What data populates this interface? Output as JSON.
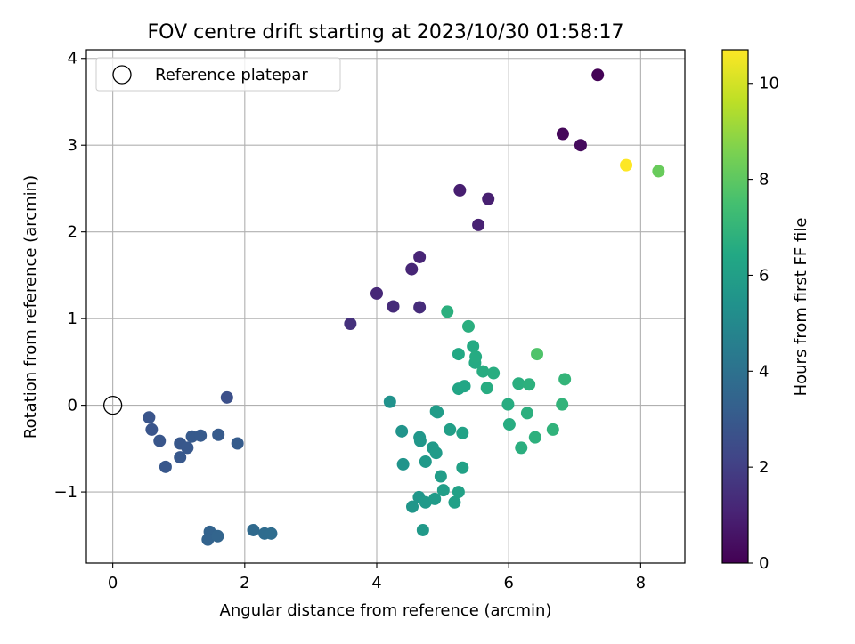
{
  "chart_data": {
    "type": "scatter",
    "title": "FOV centre drift starting at 2023/10/30 01:58:17",
    "xlabel": "Angular distance from reference (arcmin)",
    "ylabel": "Rotation from reference (arcmin)",
    "xlim": [
      -0.4,
      8.67
    ],
    "ylim": [
      -1.82,
      4.1
    ],
    "xticks": [
      {
        "value": 0,
        "label": "0"
      },
      {
        "value": 2,
        "label": "2"
      },
      {
        "value": 4,
        "label": "4"
      },
      {
        "value": 6,
        "label": "6"
      },
      {
        "value": 8,
        "label": "8"
      }
    ],
    "yticks": [
      {
        "value": -1,
        "label": "−1"
      },
      {
        "value": 0,
        "label": "0"
      },
      {
        "value": 1,
        "label": "1"
      },
      {
        "value": 2,
        "label": "2"
      },
      {
        "value": 3,
        "label": "3"
      },
      {
        "value": 4,
        "label": "4"
      }
    ],
    "grid": true,
    "legend": {
      "placement": "upper-left",
      "entries": [
        "Reference platepar"
      ]
    },
    "reference_point": {
      "x": 0,
      "y": 0,
      "label": "Reference platepar"
    },
    "colorbar": {
      "label": "Hours from first FF file",
      "colormap": "viridis",
      "range": [
        0,
        10.7
      ],
      "ticks": [
        {
          "value": 0,
          "label": "0"
        },
        {
          "value": 2,
          "label": "2"
        },
        {
          "value": 4,
          "label": "4"
        },
        {
          "value": 6,
          "label": "6"
        },
        {
          "value": 8,
          "label": "8"
        },
        {
          "value": 10,
          "label": "10"
        }
      ]
    },
    "points": [
      {
        "x": 7.35,
        "y": 3.81,
        "h": 0.05
      },
      {
        "x": 6.82,
        "y": 3.13,
        "h": 0.2
      },
      {
        "x": 7.09,
        "y": 3.0,
        "h": 0.3
      },
      {
        "x": 7.78,
        "y": 2.77,
        "h": 10.7
      },
      {
        "x": 8.27,
        "y": 2.7,
        "h": 8.2
      },
      {
        "x": 5.26,
        "y": 2.48,
        "h": 0.9
      },
      {
        "x": 5.69,
        "y": 2.38,
        "h": 0.95
      },
      {
        "x": 5.54,
        "y": 2.08,
        "h": 1.0
      },
      {
        "x": 4.65,
        "y": 1.71,
        "h": 1.1
      },
      {
        "x": 4.53,
        "y": 1.57,
        "h": 1.15
      },
      {
        "x": 4.0,
        "y": 1.29,
        "h": 1.2
      },
      {
        "x": 4.25,
        "y": 1.14,
        "h": 1.3
      },
      {
        "x": 4.65,
        "y": 1.13,
        "h": 1.35
      },
      {
        "x": 3.6,
        "y": 0.94,
        "h": 1.5
      },
      {
        "x": 1.73,
        "y": 0.09,
        "h": 2.6
      },
      {
        "x": 0.55,
        "y": -0.14,
        "h": 2.8
      },
      {
        "x": 0.59,
        "y": -0.28,
        "h": 2.8
      },
      {
        "x": 0.71,
        "y": -0.41,
        "h": 2.85
      },
      {
        "x": 0.8,
        "y": -0.71,
        "h": 2.9
      },
      {
        "x": 1.02,
        "y": -0.44,
        "h": 2.9
      },
      {
        "x": 1.02,
        "y": -0.6,
        "h": 2.95
      },
      {
        "x": 1.13,
        "y": -0.49,
        "h": 2.95
      },
      {
        "x": 1.2,
        "y": -0.36,
        "h": 3.0
      },
      {
        "x": 1.33,
        "y": -0.35,
        "h": 3.0
      },
      {
        "x": 1.6,
        "y": -0.34,
        "h": 3.05
      },
      {
        "x": 1.89,
        "y": -0.44,
        "h": 3.1
      },
      {
        "x": 1.47,
        "y": -1.46,
        "h": 3.4
      },
      {
        "x": 1.44,
        "y": -1.55,
        "h": 3.4
      },
      {
        "x": 1.59,
        "y": -1.51,
        "h": 3.45
      },
      {
        "x": 2.13,
        "y": -1.44,
        "h": 3.7
      },
      {
        "x": 2.3,
        "y": -1.48,
        "h": 3.75
      },
      {
        "x": 2.4,
        "y": -1.48,
        "h": 3.8
      },
      {
        "x": 4.2,
        "y": 0.04,
        "h": 5.4
      },
      {
        "x": 4.38,
        "y": -0.3,
        "h": 5.5
      },
      {
        "x": 4.4,
        "y": -0.68,
        "h": 5.5
      },
      {
        "x": 4.54,
        "y": -1.17,
        "h": 5.6
      },
      {
        "x": 4.64,
        "y": -1.06,
        "h": 5.6
      },
      {
        "x": 4.65,
        "y": -0.37,
        "h": 5.65
      },
      {
        "x": 4.66,
        "y": -0.41,
        "h": 5.65
      },
      {
        "x": 4.7,
        "y": -1.44,
        "h": 5.7
      },
      {
        "x": 4.74,
        "y": -1.12,
        "h": 5.7
      },
      {
        "x": 4.74,
        "y": -0.65,
        "h": 5.7
      },
      {
        "x": 4.85,
        "y": -0.49,
        "h": 5.75
      },
      {
        "x": 4.88,
        "y": -1.08,
        "h": 5.8
      },
      {
        "x": 4.9,
        "y": -0.55,
        "h": 5.8
      },
      {
        "x": 4.9,
        "y": -0.07,
        "h": 5.85
      },
      {
        "x": 4.92,
        "y": -0.08,
        "h": 5.85
      },
      {
        "x": 4.97,
        "y": -0.82,
        "h": 5.9
      },
      {
        "x": 5.01,
        "y": -0.98,
        "h": 5.95
      },
      {
        "x": 5.11,
        "y": -0.28,
        "h": 6.0
      },
      {
        "x": 5.18,
        "y": -1.12,
        "h": 6.05
      },
      {
        "x": 5.24,
        "y": -1.0,
        "h": 6.1
      },
      {
        "x": 5.3,
        "y": -0.72,
        "h": 6.1
      },
      {
        "x": 5.3,
        "y": -0.32,
        "h": 6.15
      },
      {
        "x": 5.24,
        "y": 0.19,
        "h": 6.3
      },
      {
        "x": 5.33,
        "y": 0.22,
        "h": 6.35
      },
      {
        "x": 5.24,
        "y": 0.59,
        "h": 6.4
      },
      {
        "x": 5.46,
        "y": 0.68,
        "h": 6.5
      },
      {
        "x": 5.49,
        "y": 0.49,
        "h": 6.5
      },
      {
        "x": 5.5,
        "y": 0.56,
        "h": 6.55
      },
      {
        "x": 5.61,
        "y": 0.39,
        "h": 6.6
      },
      {
        "x": 5.67,
        "y": 0.2,
        "h": 6.6
      },
      {
        "x": 5.77,
        "y": 0.37,
        "h": 6.65
      },
      {
        "x": 5.39,
        "y": 0.91,
        "h": 6.7
      },
      {
        "x": 5.07,
        "y": 1.08,
        "h": 6.75
      },
      {
        "x": 5.99,
        "y": 0.01,
        "h": 6.6
      },
      {
        "x": 6.01,
        "y": -0.22,
        "h": 6.6
      },
      {
        "x": 6.15,
        "y": 0.25,
        "h": 6.7
      },
      {
        "x": 6.19,
        "y": -0.49,
        "h": 6.7
      },
      {
        "x": 6.28,
        "y": -0.09,
        "h": 6.75
      },
      {
        "x": 6.31,
        "y": 0.24,
        "h": 6.8
      },
      {
        "x": 6.4,
        "y": -0.37,
        "h": 6.8
      },
      {
        "x": 6.67,
        "y": -0.28,
        "h": 6.9
      },
      {
        "x": 6.81,
        "y": 0.01,
        "h": 6.95
      },
      {
        "x": 6.85,
        "y": 0.3,
        "h": 7.0
      },
      {
        "x": 6.43,
        "y": 0.59,
        "h": 7.7
      }
    ]
  }
}
